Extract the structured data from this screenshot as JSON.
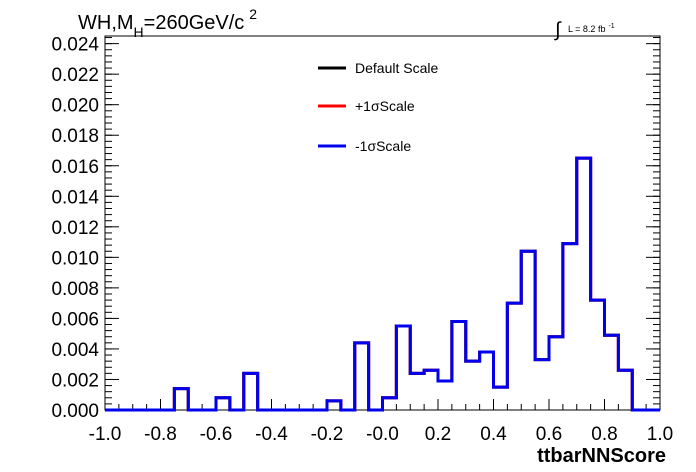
{
  "title": {
    "main": "WH,M",
    "sub": "H",
    "rest": "=260GeV/c",
    "sup": "2"
  },
  "lumi": {
    "symbol": "∫",
    "text": "L = 8.2 fb",
    "sup": "-1"
  },
  "chart_data": {
    "type": "line",
    "xlabel": "ttbarNNScore",
    "ylabel": "",
    "xlim": [
      -1.0,
      1.0
    ],
    "ylim": [
      0.0,
      0.0245
    ],
    "x_ticks": [
      "-1.0",
      "-0.8",
      "-0.6",
      "-0.4",
      "-0.2",
      "-0.0",
      "0.2",
      "0.4",
      "0.6",
      "0.8",
      "1.0"
    ],
    "y_ticks": [
      "0.000",
      "0.002",
      "0.004",
      "0.006",
      "0.008",
      "0.010",
      "0.012",
      "0.014",
      "0.016",
      "0.018",
      "0.020",
      "0.022",
      "0.024"
    ],
    "bin_edges": [
      -1.0,
      -0.95,
      -0.9,
      -0.85,
      -0.8,
      -0.75,
      -0.7,
      -0.65,
      -0.6,
      -0.55,
      -0.5,
      -0.45,
      -0.4,
      -0.35,
      -0.3,
      -0.25,
      -0.2,
      -0.15,
      -0.1,
      -0.05,
      0.0,
      0.05,
      0.1,
      0.15,
      0.2,
      0.25,
      0.3,
      0.35,
      0.4,
      0.45,
      0.5,
      0.55,
      0.6,
      0.65,
      0.7,
      0.75,
      0.8,
      0.85,
      0.9,
      0.95,
      1.0
    ],
    "series": [
      {
        "name": "Default Scale",
        "color": "#000000",
        "values": [
          0,
          0,
          0,
          0,
          0,
          0.0014,
          0,
          0,
          0.0008,
          0,
          0.0024,
          0,
          0,
          0,
          0,
          0,
          0.0006,
          0,
          0.0044,
          0,
          0.0008,
          0.0055,
          0.0024,
          0.0026,
          0.0019,
          0.0058,
          0.0032,
          0.0038,
          0.0015,
          0.007,
          0.0104,
          0.0033,
          0.0048,
          0.0109,
          0.0165,
          0.0072,
          0.0049,
          0.0026,
          0,
          0
        ]
      },
      {
        "name": "+1σScale",
        "color": "#ff0000",
        "values": [
          0,
          0,
          0,
          0,
          0,
          0.0014,
          0,
          0,
          0.0008,
          0,
          0.0024,
          0,
          0,
          0,
          0,
          0,
          0.0006,
          0,
          0.0044,
          0,
          0.0008,
          0.0055,
          0.0024,
          0.0026,
          0.0019,
          0.0058,
          0.0032,
          0.0038,
          0.0015,
          0.007,
          0.0104,
          0.0033,
          0.0048,
          0.0109,
          0.0165,
          0.0072,
          0.0049,
          0.0026,
          0,
          0
        ]
      },
      {
        "name": "-1σScale",
        "color": "#0000ee",
        "values": [
          0,
          0,
          0,
          0,
          0,
          0.0014,
          0,
          0,
          0.0008,
          0,
          0.0024,
          0,
          0,
          0,
          0,
          0,
          0.0006,
          0,
          0.0044,
          0,
          0.0008,
          0.0055,
          0.0024,
          0.0026,
          0.0019,
          0.0058,
          0.0032,
          0.0038,
          0.0015,
          0.007,
          0.0104,
          0.0033,
          0.0048,
          0.0109,
          0.0165,
          0.0072,
          0.0049,
          0.0026,
          0,
          0
        ]
      }
    ],
    "legend_position": "top-center"
  }
}
